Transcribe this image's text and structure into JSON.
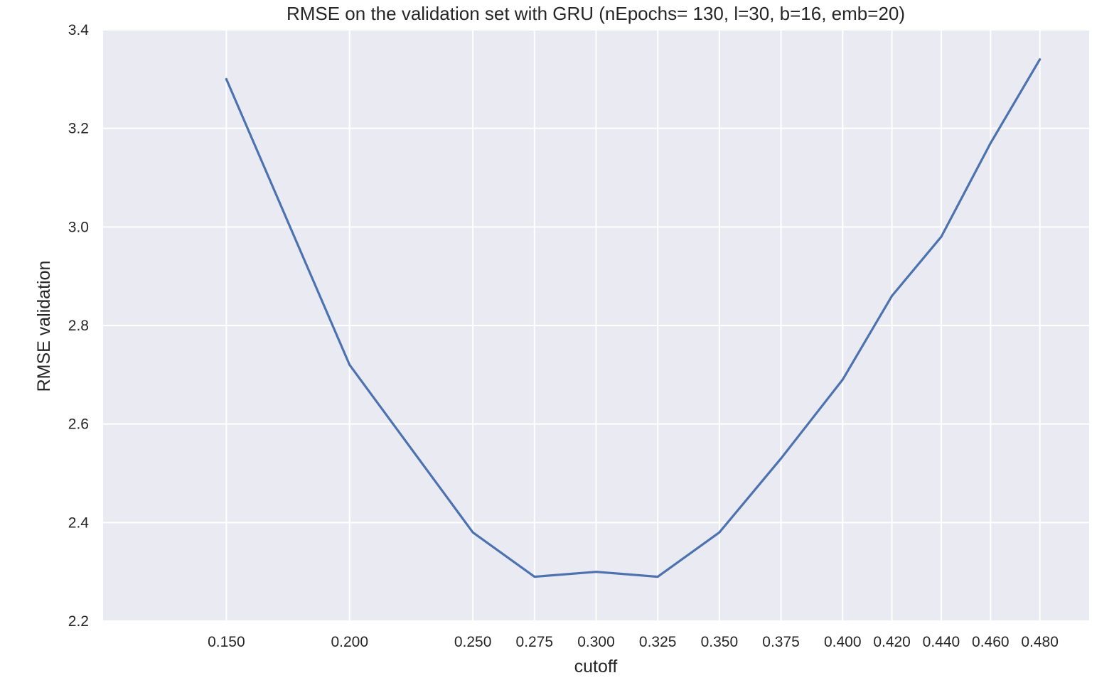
{
  "colors": {
    "plot_background": "#eaeaf2",
    "grid": "#ffffff",
    "series": "#4c72b0",
    "text": "#262626"
  },
  "chart_data": {
    "type": "line",
    "title": "RMSE on the validation set with GRU (nEpochs= 130, l=30, b=16, emb=20)",
    "xlabel": "cutoff",
    "ylabel": "RMSE validation",
    "xlim": [
      0.1,
      0.5
    ],
    "ylim": [
      2.2,
      3.4
    ],
    "xticks": [
      0.15,
      0.2,
      0.25,
      0.275,
      0.3,
      0.325,
      0.35,
      0.375,
      0.4,
      0.42,
      0.44,
      0.46,
      0.48
    ],
    "xtick_labels": [
      "0.150",
      "0.200",
      "0.250",
      "0.275",
      "0.300",
      "0.325",
      "0.350",
      "0.375",
      "0.400",
      "0.420",
      "0.440",
      "0.460",
      "0.480"
    ],
    "yticks": [
      2.2,
      2.4,
      2.6,
      2.8,
      3.0,
      3.2,
      3.4
    ],
    "ytick_labels": [
      "2.2",
      "2.4",
      "2.6",
      "2.8",
      "3.0",
      "3.2",
      "3.4"
    ],
    "grid": true,
    "legend": "none",
    "series": [
      {
        "x": [
          0.15,
          0.2,
          0.25,
          0.275,
          0.3,
          0.325,
          0.35,
          0.375,
          0.4,
          0.42,
          0.44,
          0.46,
          0.48
        ],
        "y": [
          3.3,
          2.72,
          2.38,
          2.29,
          2.3,
          2.29,
          2.38,
          2.53,
          2.69,
          2.86,
          2.98,
          3.17,
          3.34
        ]
      }
    ]
  }
}
